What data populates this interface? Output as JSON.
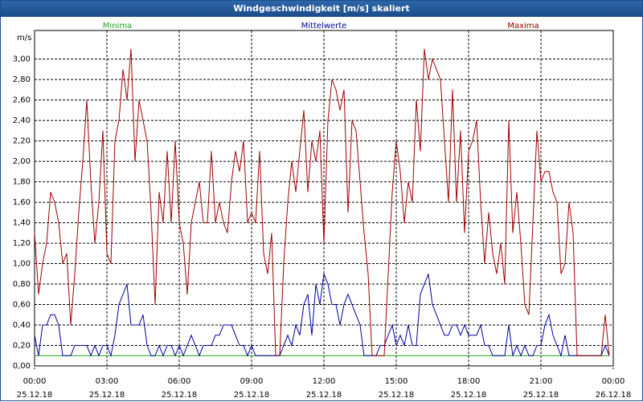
{
  "chart_data": {
    "type": "line",
    "title": "Windgeschwindigkeit [m/s] skaliert",
    "y_unit": "m/s",
    "x": [
      0,
      10,
      20,
      30,
      40,
      50,
      60,
      70,
      80,
      90,
      100,
      110,
      120,
      130,
      140,
      150,
      160,
      170,
      180,
      190,
      200,
      210,
      220,
      230,
      240,
      250,
      260,
      270,
      280,
      290,
      300,
      310,
      320,
      330,
      340,
      350,
      360,
      370,
      380,
      390,
      400,
      410,
      420,
      430,
      440,
      450,
      460,
      470,
      480,
      490,
      500,
      510,
      520,
      530,
      540,
      550,
      560,
      570,
      580,
      590,
      600,
      610,
      620,
      630,
      640,
      650,
      660,
      670,
      680,
      690,
      700,
      710,
      720,
      730,
      740,
      750,
      760,
      770,
      780,
      790,
      800,
      810,
      820,
      830,
      840,
      850,
      860,
      870,
      880,
      890,
      900,
      910,
      920,
      930,
      940,
      950,
      960,
      970,
      980,
      990,
      1000,
      1010,
      1020,
      1030,
      1040,
      1050,
      1060,
      1070,
      1080,
      1090,
      1100,
      1110,
      1120,
      1130,
      1140,
      1150,
      1160,
      1170,
      1180,
      1190,
      1200,
      1210,
      1220,
      1230,
      1240,
      1250,
      1260,
      1270,
      1280,
      1290,
      1300,
      1310,
      1320,
      1330,
      1340,
      1350,
      1360,
      1370,
      1380,
      1390,
      1400,
      1410,
      1420,
      1430
    ],
    "xlim": [
      0,
      1440
    ],
    "xticks": [
      {
        "value": 0,
        "label": "00:00\n25.12.18"
      },
      {
        "value": 180,
        "label": "03:00\n25.12.18"
      },
      {
        "value": 360,
        "label": "06:00\n25.12.18"
      },
      {
        "value": 540,
        "label": "09:00\n25.12.18"
      },
      {
        "value": 720,
        "label": "12:00\n25.12.18"
      },
      {
        "value": 900,
        "label": "15:00\n25.12.18"
      },
      {
        "value": 1080,
        "label": "18:00\n25.12.18"
      },
      {
        "value": 1260,
        "label": "21:00\n25.12.18"
      },
      {
        "value": 1440,
        "label": "00:00\n26.12.18"
      }
    ],
    "ylim": [
      0,
      3.28
    ],
    "yticks": [
      {
        "value": 0,
        "label": "0,00"
      },
      {
        "value": 0.2,
        "label": "0,20"
      },
      {
        "value": 0.4,
        "label": "0,40"
      },
      {
        "value": 0.6,
        "label": "0,60"
      },
      {
        "value": 0.8,
        "label": "0,80"
      },
      {
        "value": 1.0,
        "label": "1,00"
      },
      {
        "value": 1.2,
        "label": "1,20"
      },
      {
        "value": 1.4,
        "label": "1,40"
      },
      {
        "value": 1.6,
        "label": "1,60"
      },
      {
        "value": 1.8,
        "label": "1,80"
      },
      {
        "value": 2.0,
        "label": "2,00"
      },
      {
        "value": 2.2,
        "label": "2,20"
      },
      {
        "value": 2.4,
        "label": "2,40"
      },
      {
        "value": 2.6,
        "label": "2,60"
      },
      {
        "value": 2.8,
        "label": "2,80"
      },
      {
        "value": 3.0,
        "label": "3,00"
      }
    ],
    "grid": true,
    "series": [
      {
        "name": "Minima",
        "color": "#1fa01f",
        "values": [
          0.1,
          0.1,
          0.1,
          0.1,
          0.1,
          0.1,
          0.1,
          0.1,
          0.1,
          0.1,
          0.1,
          0.1,
          0.1,
          0.1,
          0.1,
          0.1,
          0.1,
          0.1,
          0.1,
          0.1,
          0.1,
          0.1,
          0.1,
          0.1,
          0.1,
          0.1,
          0.1,
          0.1,
          0.1,
          0.1,
          0.1,
          0.1,
          0.1,
          0.1,
          0.1,
          0.1,
          0.1,
          0.1,
          0.1,
          0.1,
          0.1,
          0.1,
          0.1,
          0.1,
          0.1,
          0.1,
          0.1,
          0.1,
          0.1,
          0.1,
          0.1,
          0.1,
          0.1,
          0.1,
          0.1,
          0.1,
          0.1,
          0.1,
          0.1,
          0.1,
          0.1,
          0.1,
          0.1,
          0.1,
          0.1,
          0.1,
          0.1,
          0.1,
          0.1,
          0.1,
          0.1,
          0.1,
          0.1,
          0.1,
          0.1,
          0.1,
          0.1,
          0.1,
          0.1,
          0.1,
          0.1,
          0.1,
          0.1,
          0.1,
          0.1,
          0.1,
          0.1,
          0.1,
          0.1,
          0.1,
          0.1,
          0.1,
          0.1,
          0.1,
          0.1,
          0.1,
          0.1,
          0.1,
          0.1,
          0.1,
          0.1,
          0.1,
          0.1,
          0.1,
          0.1,
          0.1,
          0.1,
          0.1,
          0.1,
          0.1,
          0.1,
          0.1,
          0.1,
          0.1,
          0.1,
          0.1,
          0.1,
          0.1,
          0.1,
          0.1,
          0.1,
          0.1,
          0.1,
          0.1,
          0.1,
          0.1,
          0.1,
          0.1,
          0.1,
          0.1,
          0.1,
          0.1,
          0.1,
          0.1,
          0.1,
          0.1,
          0.1,
          0.1,
          0.1,
          0.1,
          0.1,
          0.1,
          0.1,
          0.1
        ]
      },
      {
        "name": "Mittelwerte",
        "color": "#0000a0",
        "values": [
          0.3,
          0.1,
          0.4,
          0.4,
          0.5,
          0.5,
          0.4,
          0.1,
          0.1,
          0.1,
          0.2,
          0.2,
          0.2,
          0.2,
          0.1,
          0.2,
          0.1,
          0.2,
          0.2,
          0.1,
          0.3,
          0.6,
          0.7,
          0.8,
          0.4,
          0.4,
          0.4,
          0.5,
          0.2,
          0.1,
          0.1,
          0.2,
          0.1,
          0.2,
          0.2,
          0.1,
          0.2,
          0.1,
          0.2,
          0.3,
          0.2,
          0.1,
          0.2,
          0.2,
          0.2,
          0.3,
          0.3,
          0.4,
          0.4,
          0.4,
          0.3,
          0.2,
          0.2,
          0.1,
          0.2,
          0.1,
          0.1,
          0.1,
          0.1,
          0.1,
          0.1,
          0.1,
          0.2,
          0.3,
          0.2,
          0.4,
          0.3,
          0.6,
          0.7,
          0.3,
          0.8,
          0.6,
          0.9,
          0.8,
          0.6,
          0.6,
          0.4,
          0.6,
          0.7,
          0.6,
          0.5,
          0.4,
          0.1,
          0.1,
          0.1,
          0.1,
          0.2,
          0.2,
          0.3,
          0.4,
          0.2,
          0.3,
          0.2,
          0.4,
          0.2,
          0.2,
          0.7,
          0.8,
          0.9,
          0.6,
          0.5,
          0.4,
          0.3,
          0.3,
          0.4,
          0.4,
          0.3,
          0.4,
          0.3,
          0.3,
          0.3,
          0.4,
          0.2,
          0.2,
          0.1,
          0.1,
          0.1,
          0.1,
          0.4,
          0.1,
          0.2,
          0.1,
          0.2,
          0.1,
          0.1,
          0.2,
          0.2,
          0.4,
          0.5,
          0.3,
          0.2,
          0.1,
          0.3,
          0.1,
          0.1,
          0.1,
          0.1,
          0.1,
          0.1,
          0.1,
          0.1,
          0.1,
          0.2,
          0.1
        ]
      },
      {
        "name": "Maxima",
        "color": "#a00000",
        "values": [
          1.3,
          0.7,
          1.0,
          1.2,
          1.7,
          1.6,
          1.4,
          1.0,
          1.1,
          0.4,
          0.9,
          1.5,
          2.0,
          2.6,
          1.8,
          1.2,
          1.6,
          2.3,
          1.1,
          1.0,
          2.2,
          2.4,
          2.9,
          2.6,
          3.1,
          2.0,
          2.6,
          2.4,
          2.2,
          1.5,
          0.6,
          1.7,
          1.4,
          2.1,
          1.4,
          2.2,
          1.4,
          1.2,
          0.7,
          1.4,
          1.6,
          1.8,
          1.4,
          1.4,
          2.1,
          1.4,
          1.6,
          1.4,
          1.3,
          1.8,
          2.1,
          1.9,
          2.2,
          1.4,
          1.5,
          1.4,
          2.1,
          1.1,
          0.9,
          1.3,
          0.1,
          0.1,
          1.0,
          1.6,
          2.0,
          1.7,
          2.1,
          2.5,
          1.7,
          2.2,
          2.0,
          2.3,
          1.2,
          2.4,
          2.8,
          2.7,
          2.5,
          2.7,
          1.5,
          2.4,
          2.3,
          1.8,
          1.3,
          0.9,
          0.1,
          0.1,
          0.1,
          0.1,
          0.9,
          1.7,
          2.2,
          1.9,
          1.4,
          1.8,
          1.6,
          2.6,
          2.1,
          3.1,
          2.8,
          3.0,
          2.9,
          2.8,
          2.2,
          1.6,
          2.7,
          1.6,
          2.3,
          1.3,
          2.1,
          2.2,
          2.4,
          1.6,
          1.0,
          1.5,
          1.1,
          0.9,
          1.2,
          0.8,
          2.4,
          1.3,
          1.7,
          1.2,
          0.6,
          0.5,
          1.4,
          2.3,
          1.8,
          1.9,
          1.9,
          1.7,
          1.6,
          0.9,
          1.0,
          1.6,
          1.3,
          0.1,
          0.1,
          0.1,
          0.1,
          0.1,
          0.1,
          0.1,
          0.5,
          0.1
        ]
      }
    ]
  }
}
